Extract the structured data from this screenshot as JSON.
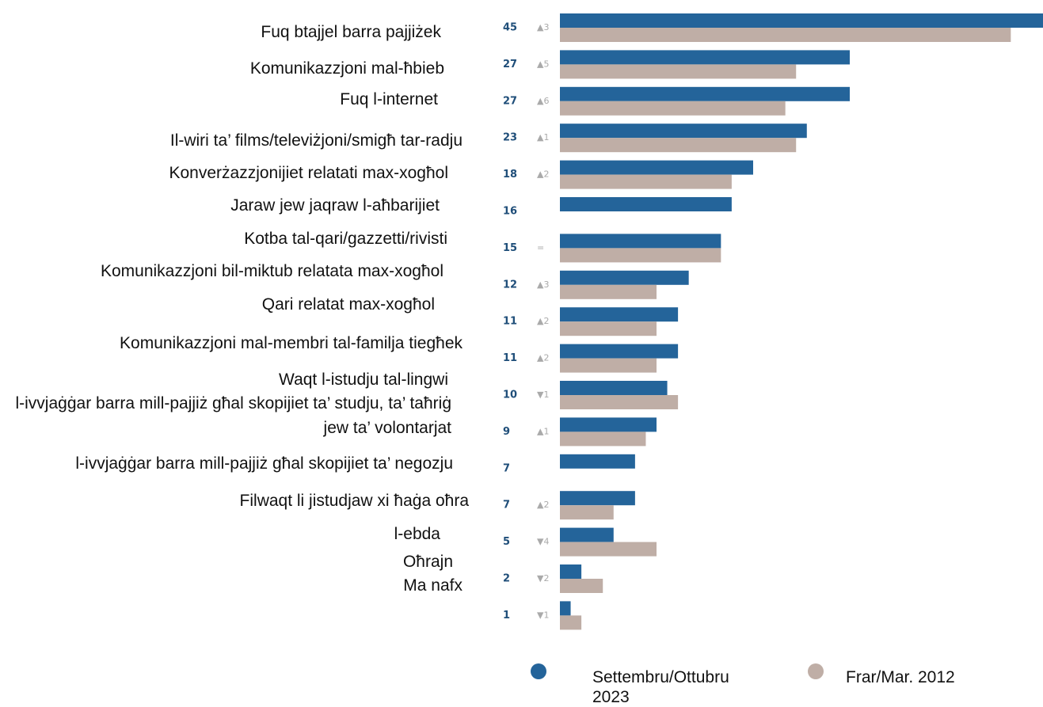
{
  "chart_data": {
    "type": "bar",
    "categories": [
      "Fuq btajjel barra pajjiżek",
      "Komunikazzjoni mal-ħbieb",
      "Fuq l-internet",
      "Il-wiri ta’ films/televiżjoni/smigħ tar-radju",
      "Konverżazzjonijiet relatati max-xogħol",
      "Jaraw jew jaqraw l-aħbarijiet",
      "Kotba tal-qari/gazzetti/rivisti",
      "Komunikazzjoni bil-miktub relatata max-xogħol",
      "Qari relatat max-xogħol",
      "Komunikazzjoni mal-membri tal-familja tiegħek",
      "Waqt l-istudju tal-lingwi",
      "l-ivvjaġġar barra mill-pajjiż għal skopijiet ta’ studju, ta’ taħriġ jew ta’ volontarjat",
      "l-ivvjaġġar barra mill-pajjiż għal skopijiet ta’ negozju",
      "Filwaqt li jistudjaw xi ħaġa oħra",
      "l-ebda",
      "Oħrajn",
      "Ma nafx"
    ],
    "series": [
      {
        "name": "Settembru/Ottubru 2023",
        "color": "#24649a",
        "values": [
          45,
          27,
          27,
          23,
          18,
          16,
          15,
          12,
          11,
          11,
          10,
          9,
          7,
          7,
          5,
          2,
          1
        ]
      },
      {
        "name": "Frar/Mar. 2012",
        "color": "#bfaea6",
        "values": [
          42,
          22,
          21,
          22,
          16,
          null,
          15,
          9,
          9,
          9,
          11,
          8,
          null,
          5,
          9,
          4,
          2
        ]
      }
    ],
    "change_labels": [
      "▲3",
      "▲5",
      "▲6",
      "▲1",
      "▲2",
      null,
      "=",
      "▲3",
      "▲2",
      "▲2",
      "▼1",
      "▲1",
      null,
      "▲2",
      "▼4",
      "▼2",
      "▼1"
    ]
  }
}
